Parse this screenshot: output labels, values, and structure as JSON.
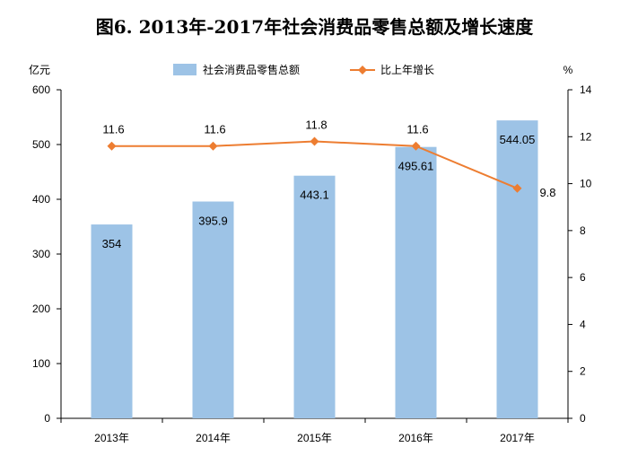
{
  "chart_data": {
    "type": "bar",
    "title": "图6. 2013年-2017年社会消费品零售总额及增长速度",
    "categories": [
      "2013年",
      "2014年",
      "2015年",
      "2016年",
      "2017年"
    ],
    "series": [
      {
        "name": "社会消费品零售总额",
        "type": "bar",
        "axis": "left",
        "color": "#9dc3e6",
        "values": [
          354,
          395.9,
          443.1,
          495.61,
          544.05
        ],
        "labels": [
          "354",
          "395.9",
          "443.1",
          "495.61",
          "544.05"
        ]
      },
      {
        "name": "比上年增长",
        "type": "line",
        "axis": "right",
        "color": "#ed7d31",
        "marker": "diamond",
        "values": [
          11.6,
          11.6,
          11.8,
          11.6,
          9.8
        ],
        "labels": [
          "11.6",
          "11.6",
          "11.8",
          "11.6",
          "9.8"
        ]
      }
    ],
    "y_left": {
      "unit": "亿元",
      "ylim": [
        0,
        600
      ],
      "ticks": [
        0,
        100,
        200,
        300,
        400,
        500,
        600
      ]
    },
    "y_right": {
      "unit": "%",
      "ylim": [
        0,
        14
      ],
      "ticks": [
        0,
        2,
        4,
        6,
        8,
        10,
        12,
        14
      ]
    },
    "legend": "top-center",
    "grid": false
  }
}
